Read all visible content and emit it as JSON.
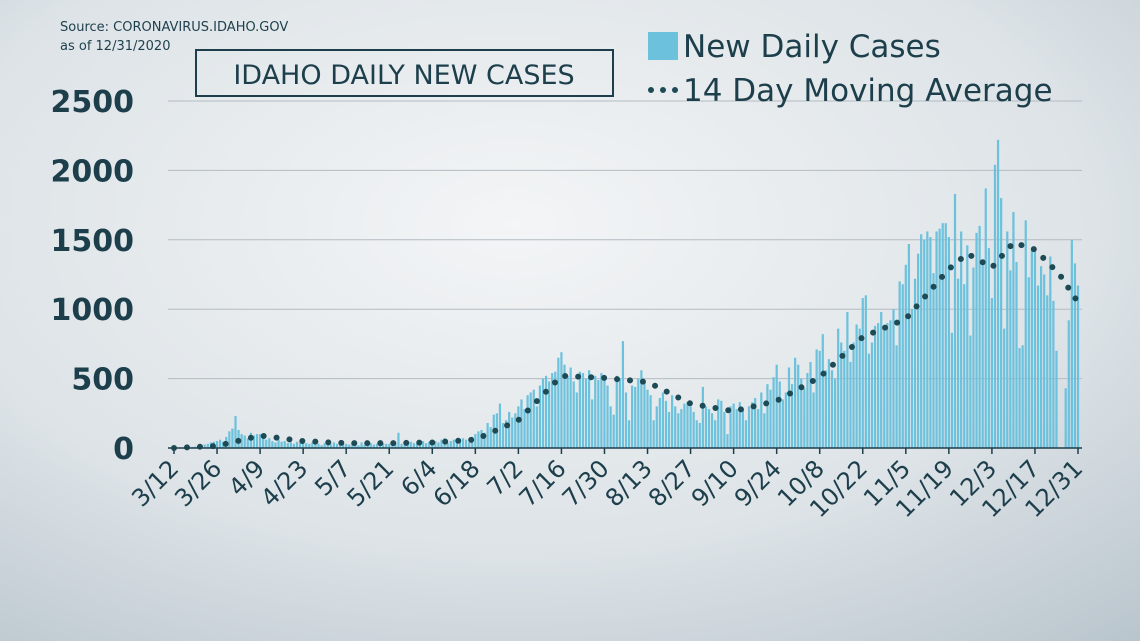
{
  "chart_data": {
    "type": "bar",
    "title": "IDAHO DAILY NEW CASES",
    "source": "Source: CORONAVIRUS.IDAHO.GOV",
    "date_note": "as of 12/31/2020",
    "ylim": [
      0,
      2500
    ],
    "yticks": [
      0,
      500,
      1000,
      1500,
      2000,
      2500
    ],
    "grid": true,
    "legend": "top-right",
    "categories": [
      "3/12",
      null,
      null,
      null,
      null,
      null,
      null,
      null,
      null,
      null,
      null,
      null,
      null,
      null,
      "3/26",
      null,
      null,
      null,
      null,
      null,
      null,
      null,
      null,
      null,
      null,
      null,
      null,
      null,
      "4/9",
      null,
      null,
      null,
      null,
      null,
      null,
      null,
      null,
      null,
      null,
      null,
      null,
      null,
      "4/23",
      null,
      null,
      null,
      null,
      null,
      null,
      null,
      null,
      null,
      null,
      null,
      null,
      null,
      "5/7",
      null,
      null,
      null,
      null,
      null,
      null,
      null,
      null,
      null,
      null,
      null,
      null,
      null,
      "5/21",
      null,
      null,
      null,
      null,
      null,
      null,
      null,
      null,
      null,
      null,
      null,
      null,
      null,
      "6/4",
      null,
      null,
      null,
      null,
      null,
      null,
      null,
      null,
      null,
      null,
      null,
      null,
      null,
      "6/18",
      null,
      null,
      null,
      null,
      null,
      null,
      null,
      null,
      null,
      null,
      null,
      null,
      null,
      "7/2",
      null,
      null,
      null,
      null,
      null,
      null,
      null,
      null,
      null,
      null,
      null,
      null,
      null,
      "7/16",
      null,
      null,
      null,
      null,
      null,
      null,
      null,
      null,
      null,
      null,
      null,
      null,
      null,
      "7/30",
      null,
      null,
      null,
      null,
      null,
      null,
      null,
      null,
      null,
      null,
      null,
      null,
      null,
      "8/13",
      null,
      null,
      null,
      null,
      null,
      null,
      null,
      null,
      null,
      null,
      null,
      null,
      null,
      "8/27",
      null,
      null,
      null,
      null,
      null,
      null,
      null,
      null,
      null,
      null,
      null,
      null,
      null,
      "9/10",
      null,
      null,
      null,
      null,
      null,
      null,
      null,
      null,
      null,
      null,
      null,
      null,
      null,
      "9/24",
      null,
      null,
      null,
      null,
      null,
      null,
      null,
      null,
      null,
      null,
      null,
      null,
      null,
      "10/8",
      null,
      null,
      null,
      null,
      null,
      null,
      null,
      null,
      null,
      null,
      null,
      null,
      null,
      "10/22",
      null,
      null,
      null,
      null,
      null,
      null,
      null,
      null,
      null,
      null,
      null,
      null,
      null,
      "11/5",
      null,
      null,
      null,
      null,
      null,
      null,
      null,
      null,
      null,
      null,
      null,
      null,
      null,
      "11/19",
      null,
      null,
      null,
      null,
      null,
      null,
      null,
      null,
      null,
      null,
      null,
      null,
      null,
      "12/3",
      null,
      null,
      null,
      null,
      null,
      null,
      null,
      null,
      null,
      null,
      null,
      null,
      null,
      "12/17",
      null,
      null,
      null,
      null,
      null,
      null,
      null,
      null,
      null,
      null,
      null,
      null,
      null,
      "12/31"
    ],
    "series": [
      {
        "name": "New Daily Cases",
        "type": "bar",
        "color": "#6cc1dc",
        "values": [
          0,
          0,
          1,
          2,
          3,
          5,
          8,
          10,
          12,
          20,
          25,
          30,
          40,
          45,
          50,
          60,
          45,
          80,
          120,
          140,
          230,
          130,
          100,
          90,
          70,
          110,
          90,
          100,
          100,
          80,
          60,
          70,
          50,
          40,
          60,
          45,
          50,
          35,
          40,
          30,
          45,
          40,
          40,
          35,
          30,
          40,
          25,
          30,
          20,
          35,
          30,
          25,
          40,
          30,
          20,
          30,
          30,
          25,
          35,
          30,
          20,
          40,
          25,
          30,
          35,
          25,
          30,
          20,
          35,
          30,
          30,
          40,
          35,
          110,
          30,
          25,
          40,
          45,
          35,
          30,
          40,
          50,
          35,
          45,
          45,
          50,
          40,
          60,
          70,
          35,
          50,
          60,
          45,
          55,
          70,
          60,
          40,
          80,
          100,
          120,
          130,
          110,
          180,
          150,
          240,
          250,
          320,
          180,
          200,
          260,
          220,
          250,
          300,
          350,
          280,
          380,
          400,
          420,
          300,
          450,
          500,
          520,
          480,
          540,
          550,
          650,
          690,
          600,
          520,
          580,
          480,
          400,
          550,
          540,
          500,
          560,
          350,
          520,
          490,
          540,
          500,
          450,
          300,
          240,
          520,
          500,
          770,
          400,
          200,
          450,
          440,
          500,
          560,
          470,
          420,
          380,
          200,
          300,
          360,
          400,
          340,
          260,
          380,
          300,
          250,
          280,
          320,
          330,
          300,
          260,
          200,
          180,
          440,
          300,
          280,
          250,
          200,
          350,
          340,
          260,
          100,
          300,
          320,
          280,
          330,
          280,
          200,
          300,
          330,
          360,
          280,
          400,
          250,
          460,
          420,
          510,
          600,
          480,
          350,
          400,
          580,
          460,
          650,
          600,
          500,
          430,
          540,
          620,
          400,
          710,
          700,
          820,
          560,
          640,
          560,
          500,
          860,
          760,
          700,
          980,
          620,
          760,
          890,
          860,
          1080,
          1100,
          680,
          760,
          880,
          900,
          980,
          860,
          900,
          920,
          1000,
          740,
          1200,
          1180,
          1320,
          1470,
          1000,
          1220,
          1400,
          1540,
          1500,
          1560,
          1520,
          1260,
          1560,
          1580,
          1620,
          1620,
          1520,
          830,
          1830,
          1220,
          1560,
          1180,
          1460,
          810,
          1300,
          1550,
          1600,
          1340,
          1870,
          1440,
          1080,
          2040,
          2220,
          1800,
          860,
          1560,
          1280,
          1700,
          1340,
          720,
          740,
          1640,
          1230,
          1420,
          1420,
          1170,
          1310,
          1250,
          1100,
          1380,
          1060,
          700,
          0,
          0,
          430,
          920,
          1500,
          1330,
          1170
        ]
      },
      {
        "name": "14 Day Moving Average",
        "type": "line",
        "style": "dotted",
        "color": "#1d4a55",
        "values": [
          0,
          1,
          2,
          3,
          4,
          5,
          6,
          8,
          9,
          10,
          11,
          12,
          13,
          14,
          15,
          20,
          26,
          31,
          36,
          42,
          47,
          52,
          58,
          63,
          68,
          74,
          79,
          85,
          90,
          87,
          84,
          81,
          79,
          76,
          73,
          70,
          67,
          64,
          61,
          59,
          56,
          53,
          50,
          49,
          48,
          47,
          46,
          45,
          44,
          43,
          41,
          40,
          39,
          38,
          37,
          36,
          35,
          35,
          35,
          35,
          35,
          35,
          35,
          35,
          35,
          35,
          35,
          35,
          35,
          35,
          35,
          35,
          36,
          36,
          36,
          37,
          37,
          38,
          38,
          38,
          39,
          39,
          40,
          40,
          40,
          41,
          43,
          44,
          46,
          47,
          49,
          50,
          51,
          53,
          54,
          56,
          57,
          59,
          60,
          70,
          80,
          90,
          100,
          110,
          120,
          130,
          140,
          150,
          160,
          170,
          180,
          190,
          200,
          223,
          246,
          269,
          291,
          314,
          337,
          360,
          383,
          406,
          429,
          451,
          474,
          497,
          520,
          519,
          518,
          517,
          516,
          515,
          514,
          513,
          511,
          510,
          509,
          508,
          507,
          506,
          505,
          503,
          501,
          499,
          496,
          494,
          492,
          490,
          488,
          486,
          484,
          481,
          479,
          477,
          475,
          464,
          453,
          442,
          431,
          420,
          409,
          398,
          387,
          375,
          364,
          353,
          342,
          331,
          320,
          316,
          312,
          308,
          304,
          300,
          296,
          292,
          289,
          285,
          281,
          277,
          273,
          269,
          265,
          270,
          276,
          281,
          286,
          292,
          297,
          302,
          308,
          313,
          318,
          324,
          329,
          335,
          340,
          352,
          364,
          376,
          389,
          401,
          413,
          425,
          437,
          449,
          461,
          474,
          486,
          498,
          510,
          531,
          551,
          572,
          593,
          614,
          634,
          655,
          676,
          696,
          717,
          738,
          759,
          779,
          800,
          809,
          819,
          828,
          837,
          846,
          856,
          865,
          874,
          884,
          893,
          902,
          911,
          921,
          930,
          956,
          981,
          1007,
          1033,
          1059,
          1084,
          1110,
          1136,
          1161,
          1187,
          1213,
          1239,
          1264,
          1290,
          1308,
          1327,
          1345,
          1363,
          1382,
          1400,
          1388,
          1375,
          1363,
          1350,
          1338,
          1325,
          1313,
          1300,
          1326,
          1351,
          1377,
          1403,
          1429,
          1454,
          1480,
          1473,
          1466,
          1459,
          1451,
          1444,
          1437,
          1430,
          1408,
          1385,
          1363,
          1340,
          1318,
          1295,
          1273,
          1250,
          1217,
          1183,
          1150,
          1117,
          1083,
          1050
        ]
      }
    ]
  }
}
